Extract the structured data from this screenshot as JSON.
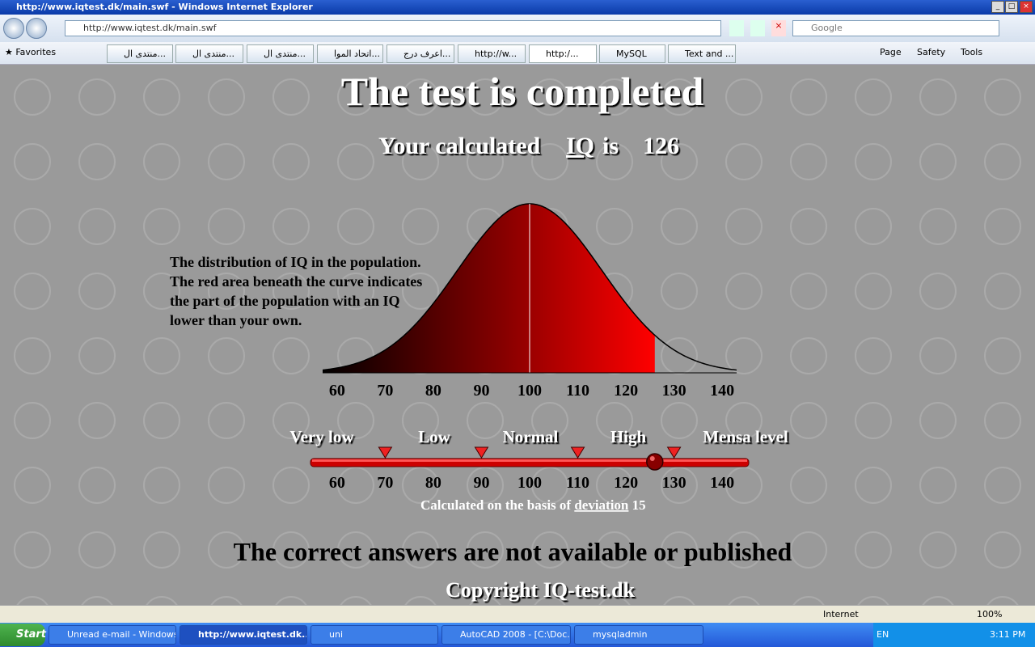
{
  "window": {
    "title": "http://www.iqtest.dk/main.swf - Windows Internet Explorer"
  },
  "address": "http://www.iqtest.dk/main.swf",
  "search_placeholder": "Google",
  "favorites": "Favorites",
  "tabs": [
    "منتدى ال...",
    "منتدى ال...",
    "منتدى ال...",
    "اتحاد الموا...",
    "اعرف درج...",
    "http://w...",
    "http:/...",
    "MySQL",
    "Text and ..."
  ],
  "command_bar": [
    "Page",
    "Safety",
    "Tools"
  ],
  "content": {
    "title": "The test is completed",
    "iq_label_pre": "Your calculated",
    "iq_link": "IQ",
    "iq_label_post": "is",
    "iq": 126,
    "description": [
      "The distribution of IQ in the population.",
      "The red area beneath the curve indicates",
      "the part of the population with an IQ",
      "lower than your own."
    ],
    "distribution": {
      "mean": 100,
      "xlim": [
        57,
        143
      ],
      "xticks": [
        60,
        70,
        80,
        90,
        100,
        110,
        120,
        130,
        140
      ]
    },
    "scale": {
      "labels": [
        "Very low",
        "Low",
        "Normal",
        "High",
        "Mensa level"
      ],
      "markers": [
        70,
        90,
        110,
        130
      ],
      "xticks": [
        60,
        70,
        80,
        90,
        100,
        110,
        120,
        130,
        140
      ]
    },
    "deviation_pre": "Calculated on the basis of",
    "deviation_link": "deviation",
    "deviation": 15,
    "notice": "The correct answers are not available or published",
    "copyright": "Copyright IQ-test.dk"
  },
  "status": {
    "zone": "Internet",
    "zoom": "100%"
  },
  "taskbar": {
    "start": "Start",
    "items": [
      "Unread e-mail - Windows...",
      "http://www.iqtest.dk...",
      "uni",
      "AutoCAD 2008 - [C:\\Doc...",
      "mysqladmin"
    ],
    "lang": "EN",
    "clock": "3:11 PM"
  }
}
